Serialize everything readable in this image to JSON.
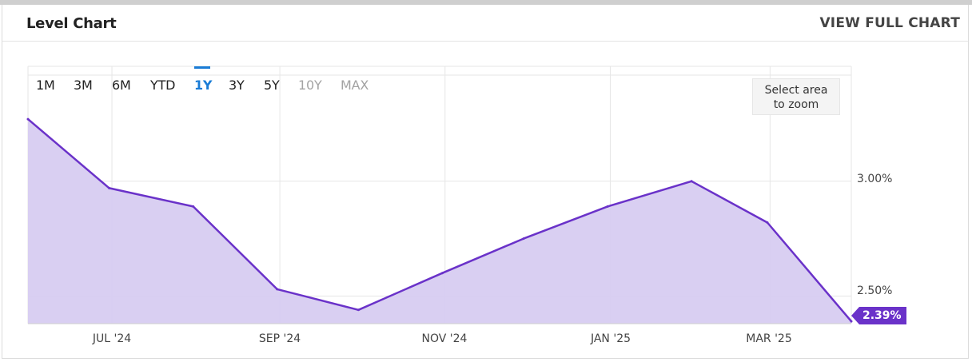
{
  "header": {
    "title": "Level Chart",
    "view_full_chart": "VIEW FULL CHART"
  },
  "range_buttons": [
    {
      "label": "1M",
      "state": "enabled"
    },
    {
      "label": "3M",
      "state": "enabled"
    },
    {
      "label": "6M",
      "state": "enabled"
    },
    {
      "label": "YTD",
      "state": "enabled"
    },
    {
      "label": "1Y",
      "state": "active"
    },
    {
      "label": "3Y",
      "state": "enabled"
    },
    {
      "label": "5Y",
      "state": "enabled"
    },
    {
      "label": "10Y",
      "state": "disabled"
    },
    {
      "label": "MAX",
      "state": "disabled"
    }
  ],
  "zoom_hint": {
    "line1": "Select area",
    "line2": "to zoom"
  },
  "colors": {
    "line": "#6a32c9",
    "fill": "#d7ccf1",
    "accent": "#1a7cd6",
    "grid": "#e6e6e6"
  },
  "chart_data": {
    "type": "area",
    "x_tick_labels": [
      "JUL '24",
      "SEP '24",
      "NOV '24",
      "JAN '25",
      "MAR '25"
    ],
    "y_tick_labels": [
      "3.00%",
      "2.50%"
    ],
    "series": [
      {
        "x": [
          "2024-05-31",
          "2024-06-30",
          "2024-07-31",
          "2024-08-31",
          "2024-09-30",
          "2024-10-31",
          "2024-11-30",
          "2024-12-31",
          "2025-01-31",
          "2025-02-28",
          "2025-03-31"
        ],
        "y": [
          3.27,
          2.97,
          2.89,
          2.53,
          2.44,
          2.6,
          2.75,
          2.89,
          3.0,
          2.82,
          2.39
        ]
      }
    ],
    "last_value_label": "2.39%",
    "ylim": [
      2.38,
      3.5
    ],
    "grid": true
  }
}
